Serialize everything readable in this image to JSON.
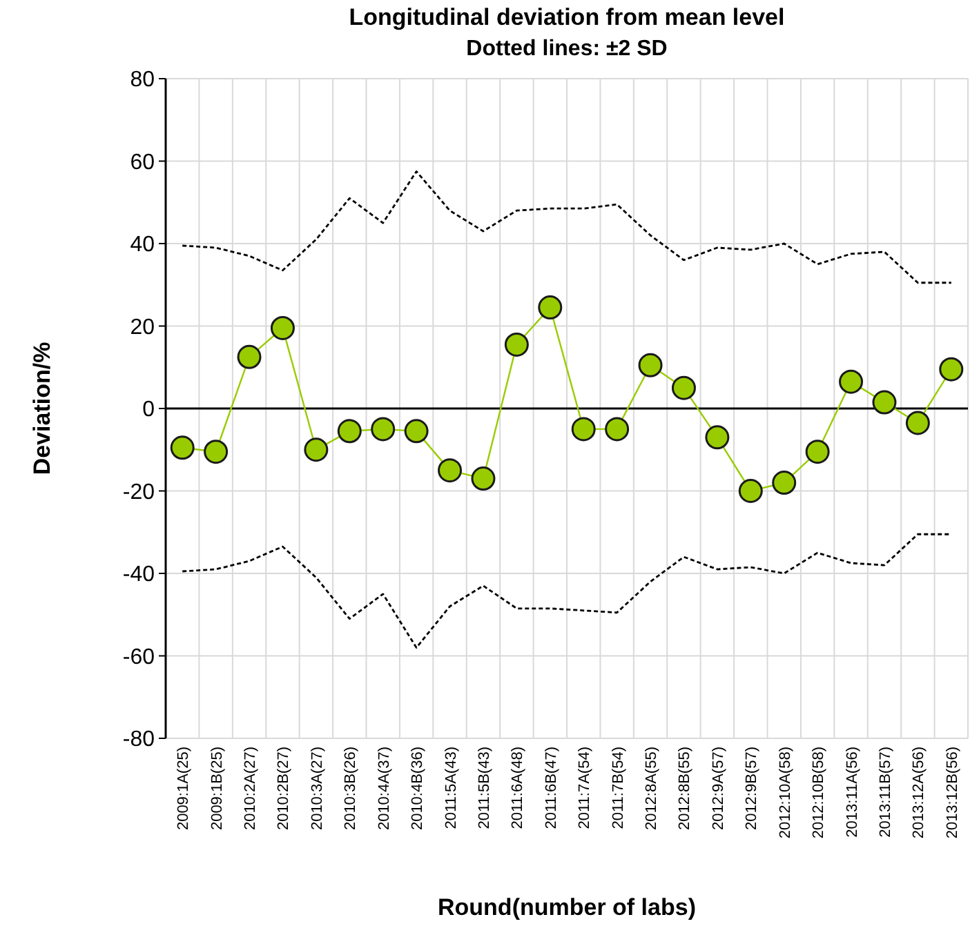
{
  "chart_data": {
    "type": "line",
    "title": "Longitudinal deviation from mean level",
    "subtitle": "Dotted lines:  ±2 SD",
    "xlabel": "Round(number of labs)",
    "ylabel": "Deviation/%",
    "categories": [
      "2009:1A(25)",
      "2009:1B(25)",
      "2010:2A(27)",
      "2010:2B(27)",
      "2010:3A(27)",
      "2010:3B(26)",
      "2010:4A(37)",
      "2010:4B(36)",
      "2011:5A(43)",
      "2011:5B(43)",
      "2011:6A(48)",
      "2011:6B(47)",
      "2011:7A(54)",
      "2011:7B(54)",
      "2012:8A(55)",
      "2012:8B(55)",
      "2012:9A(57)",
      "2012:9B(57)",
      "2012:10A(58)",
      "2012:10B(58)",
      "2013:11A(56)",
      "2013:11B(57)",
      "2013:12A(56)",
      "2013:12B(56)"
    ],
    "series": [
      {
        "color": "#99cc00",
        "marker": "circle",
        "line_style": "solid",
        "values": [
          -9.5,
          -10.5,
          12.5,
          19.5,
          -10,
          -5.5,
          -5,
          -5.5,
          -15,
          -17,
          15.5,
          24.5,
          -5,
          -5,
          10.5,
          5,
          -7,
          -20,
          -18,
          -10.5,
          6.5,
          1.5,
          -3.5,
          9.5
        ]
      },
      {
        "color": "#000000",
        "marker": "none",
        "line_style": "dotted",
        "values": [
          39.5,
          39,
          37,
          33.5,
          41,
          51,
          45,
          57.5,
          48,
          43,
          48,
          48.5,
          48.5,
          49.5,
          42,
          36,
          39,
          38.5,
          40,
          35,
          37.5,
          38,
          30.5,
          30.5
        ]
      },
      {
        "color": "#000000",
        "marker": "none",
        "line_style": "dotted",
        "values": [
          -39.5,
          -39,
          -37,
          -33.5,
          -41,
          -51,
          -45,
          -58,
          -48,
          -43,
          -48.5,
          -48.5,
          -49,
          -49.5,
          -42,
          -36,
          -39,
          -38.5,
          -40,
          -35,
          -37.5,
          -38,
          -30.5,
          -30.5
        ]
      }
    ],
    "ylim": [
      -80,
      80
    ],
    "yticks": [
      -80,
      -60,
      -40,
      -20,
      0,
      20,
      40,
      60,
      80
    ],
    "grid": true,
    "ref_lines": [
      {
        "axis": "y",
        "value": 0,
        "color": "#000000"
      }
    ]
  }
}
